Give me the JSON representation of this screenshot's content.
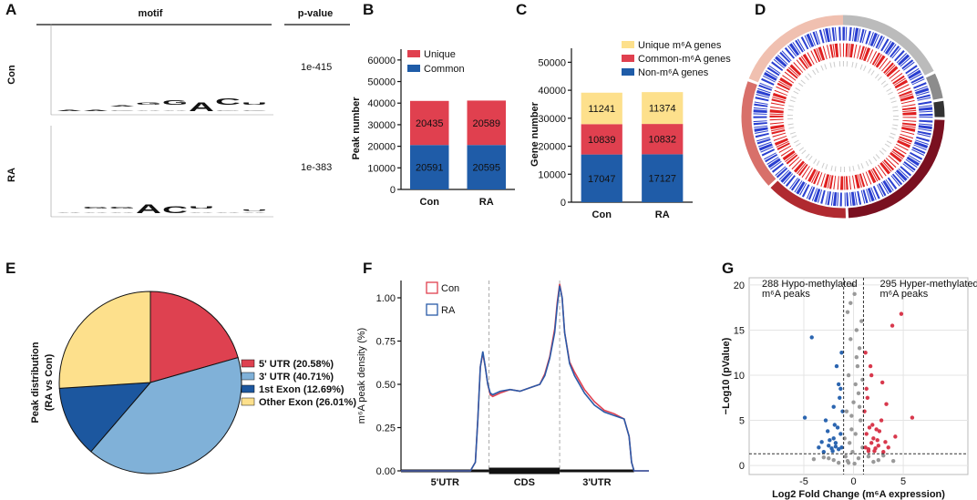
{
  "panel_labels": [
    "A",
    "B",
    "C",
    "D",
    "E",
    "F",
    "G"
  ],
  "motif_panel": {
    "header_motif": "motif",
    "header_pvalue": "p-value",
    "ylim": [
      0,
      2
    ],
    "letter_colors": {
      "A": "#1e9b3c",
      "C": "#1f5ca8",
      "G": "#f2b01e",
      "U": "#d62728"
    },
    "logos": [
      {
        "name": "Con",
        "pvalue": "1e-415",
        "positions": [
          [
            {
              "l": "A",
              "h": 0.25
            }
          ],
          [
            {
              "l": "A",
              "h": 0.2
            }
          ],
          [
            {
              "l": "C",
              "h": 0.1
            },
            {
              "l": "A",
              "h": 0.2
            }
          ],
          [
            {
              "l": "A",
              "h": 0.15
            },
            {
              "l": "G",
              "h": 0.5
            }
          ],
          [
            {
              "l": "A",
              "h": 0.15
            },
            {
              "l": "G",
              "h": 0.95
            }
          ],
          [
            {
              "l": "A",
              "h": 1.85
            }
          ],
          [
            {
              "l": "G",
              "h": 0.15
            },
            {
              "l": "C",
              "h": 1.4
            }
          ],
          [
            {
              "l": "C",
              "h": 0.15
            },
            {
              "l": "U",
              "h": 0.45
            }
          ]
        ]
      },
      {
        "name": "RA",
        "pvalue": "1e-383",
        "positions": [
          [
            {
              "l": "A",
              "h": 0.05
            }
          ],
          [
            {
              "l": "A",
              "h": 0.1
            },
            {
              "l": "G",
              "h": 0.4
            }
          ],
          [
            {
              "l": "A",
              "h": 0.1
            },
            {
              "l": "G",
              "h": 0.35
            }
          ],
          [
            {
              "l": "A",
              "h": 1.9
            }
          ],
          [
            {
              "l": "C",
              "h": 1.5
            }
          ],
          [
            {
              "l": "A",
              "h": 0.1
            },
            {
              "l": "U",
              "h": 0.45
            }
          ],
          [
            {
              "l": "A",
              "h": 0.1
            }
          ],
          [
            {
              "l": "A",
              "h": 0.05
            },
            {
              "l": "U",
              "h": 0.2
            }
          ]
        ]
      }
    ]
  },
  "chart_data": [
    {
      "type": "bar",
      "stacked": true,
      "ylabel": "Peak number",
      "categories": [
        "Con",
        "RA"
      ],
      "series": [
        {
          "name": "Common",
          "color": "#1f5ca8",
          "values": [
            20591,
            20595
          ]
        },
        {
          "name": "Unique",
          "color": "#e0404f",
          "values": [
            20435,
            20589
          ]
        }
      ],
      "ylim": [
        0,
        65000
      ],
      "yticks": [
        0,
        10000,
        20000,
        30000,
        40000,
        50000,
        60000
      ]
    },
    {
      "type": "bar",
      "stacked": true,
      "ylabel": "Gene number",
      "categories": [
        "Con",
        "RA"
      ],
      "series": [
        {
          "name": "Non-m⁶A genes",
          "color": "#1f5ca8",
          "values": [
            17047,
            17127
          ]
        },
        {
          "name": "Common-m⁶A genes",
          "color": "#e0404f",
          "values": [
            10839,
            10832
          ]
        },
        {
          "name": "Unique m⁶A genes",
          "color": "#fde08c",
          "values": [
            11241,
            11374
          ]
        }
      ],
      "ylim": [
        0,
        55000
      ],
      "yticks": [
        0,
        10000,
        20000,
        30000,
        40000,
        50000
      ]
    },
    {
      "type": "pie",
      "ylabel": [
        "Peak distribution",
        "(RA vs Con)"
      ],
      "categories": [
        "5' UTR (20.58%)",
        "3' UTR (40.71%)",
        "1st Exon (12.69%)",
        "Other Exon (26.01%)"
      ],
      "values": [
        20.58,
        40.71,
        12.69,
        26.01
      ],
      "colors": [
        "#de4150",
        "#80b1d8",
        "#1c579f",
        "#fde08c"
      ]
    },
    {
      "type": "line",
      "ylabel": "m⁶A peak density (%)",
      "x": [
        0,
        28,
        30,
        31,
        32,
        33,
        34,
        35,
        36,
        37,
        40,
        44,
        48,
        52,
        56,
        58,
        60,
        62,
        63,
        64,
        65,
        66,
        68,
        70,
        74,
        78,
        82,
        86,
        90,
        92,
        93,
        94,
        95,
        100
      ],
      "series": [
        {
          "name": "Con",
          "color": "#e0404f",
          "values": [
            0,
            0,
            0.05,
            0.3,
            0.6,
            0.68,
            0.6,
            0.5,
            0.44,
            0.43,
            0.45,
            0.47,
            0.46,
            0.48,
            0.5,
            0.56,
            0.66,
            0.82,
            0.97,
            1.08,
            1.0,
            0.8,
            0.63,
            0.57,
            0.47,
            0.4,
            0.35,
            0.33,
            0.3,
            0.2,
            0.05,
            0,
            0,
            0
          ]
        },
        {
          "name": "RA",
          "color": "#2a5aa8",
          "values": [
            0,
            0,
            0.05,
            0.3,
            0.6,
            0.69,
            0.6,
            0.5,
            0.45,
            0.44,
            0.46,
            0.47,
            0.46,
            0.48,
            0.5,
            0.55,
            0.65,
            0.8,
            0.95,
            1.07,
            1.0,
            0.8,
            0.62,
            0.55,
            0.45,
            0.38,
            0.34,
            0.32,
            0.3,
            0.2,
            0.05,
            0,
            0,
            0
          ]
        }
      ],
      "regions": [
        {
          "label": "5'UTR",
          "start": 0,
          "end": 35.5
        },
        {
          "label": "CDS",
          "start": 35.5,
          "end": 64
        },
        {
          "label": "3'UTR",
          "start": 64,
          "end": 94
        }
      ],
      "vlines": [
        35.5,
        64
      ],
      "xlim": [
        0,
        100
      ],
      "ylim": [
        0,
        1.1
      ],
      "yticks": [
        {
          "value": 0,
          "label": "0.00"
        },
        {
          "value": 0.25,
          "label": "0.25"
        },
        {
          "value": 0.5,
          "label": "0.50"
        },
        {
          "value": 0.75,
          "label": "0.75"
        },
        {
          "value": 1,
          "label": "1.00"
        }
      ]
    },
    {
      "type": "scatter",
      "xlabel": "Log2 Fold Change (m⁶A expression)",
      "ylabel": "−Log10 (pValue)",
      "grid": true,
      "series": [
        {
          "color": "#999999",
          "x": [
            -0.9,
            -0.7,
            -0.5,
            -0.3,
            -0.1,
            0.1,
            0.3,
            0.5,
            0.7,
            0.9,
            -0.8,
            -0.6,
            -0.4,
            -0.2,
            0,
            0.2,
            0.4,
            0.6,
            0.8,
            -0.5,
            0.5,
            -0.3,
            0.3,
            -0.1,
            0.1,
            -2,
            -3,
            2,
            3,
            -4,
            4,
            -1.5,
            1.5,
            -2.5,
            2.5,
            0.6,
            -0.6,
            0.2,
            -0.2,
            0.9
          ],
          "values": [
            3,
            6,
            10,
            14,
            20,
            19,
            12,
            8,
            5,
            2,
            1,
            0.5,
            2.5,
            4,
            7,
            9,
            11,
            13,
            16,
            0.3,
            0.8,
            18,
            15,
            1.5,
            0.2,
            0.6,
            0.9,
            0.4,
            1.1,
            0.7,
            0.5,
            0.3,
            1,
            0.8,
            0.6,
            6.5,
            17,
            3.5,
            5.5,
            9.5
          ]
        },
        {
          "color": "#2b65b0",
          "x": [
            -1.2,
            -1.5,
            -1.8,
            -2.1,
            -2.5,
            -3,
            -1.3,
            -1.6,
            -2,
            -2.4,
            -2.8,
            -3.5,
            -1.1,
            -1.4,
            -1.9,
            -2.2,
            -4.2,
            -1.5,
            -1.7,
            -2.6,
            -3.2,
            -1.2,
            -4.9,
            -1.3,
            -2.0,
            -1.8
          ],
          "values": [
            2,
            1.8,
            2.5,
            1.6,
            2.2,
            1.5,
            3.5,
            4.2,
            3,
            2.8,
            5,
            2,
            6,
            7.5,
            4.5,
            1.9,
            14.2,
            9,
            11,
            3.8,
            2.6,
            12.5,
            5.3,
            8.5,
            6.5,
            2.1
          ]
        },
        {
          "color": "#d8384c",
          "x": [
            1.2,
            1.5,
            1.8,
            2.1,
            2.5,
            3,
            1.3,
            1.6,
            2,
            2.4,
            2.8,
            3.5,
            1.1,
            1.4,
            1.9,
            2.2,
            4.8,
            3.9,
            1.7,
            2.6,
            3.2,
            1.2,
            5.9,
            1.3,
            4.2,
            3.3,
            2.9,
            1.5,
            1.8,
            2.3
          ],
          "values": [
            2,
            1.8,
            2.5,
            1.6,
            2.2,
            1.5,
            3.5,
            4.2,
            3,
            2.8,
            5,
            2,
            6,
            7.5,
            4.5,
            1.9,
            16.8,
            15.5,
            11,
            3.8,
            2.6,
            12.5,
            5.3,
            8.5,
            3.2,
            6.8,
            9.2,
            1.6,
            10,
            4
          ]
        }
      ],
      "annotations": [
        {
          "lines": [
            "288 Hypo-methylated",
            "m⁶A peaks"
          ],
          "color": "#2b65b0"
        },
        {
          "lines": [
            "295 Hyper-methylated",
            "m⁶A peaks"
          ],
          "color": "#d8384c"
        }
      ],
      "vlines": [
        -1,
        1
      ],
      "hline": 1.3,
      "xlim": [
        -10.5,
        11.5
      ],
      "ylim": [
        -1,
        20.8
      ],
      "xticks": [
        -5,
        0,
        5
      ],
      "yticks": [
        0,
        5,
        10,
        15,
        20
      ]
    }
  ]
}
